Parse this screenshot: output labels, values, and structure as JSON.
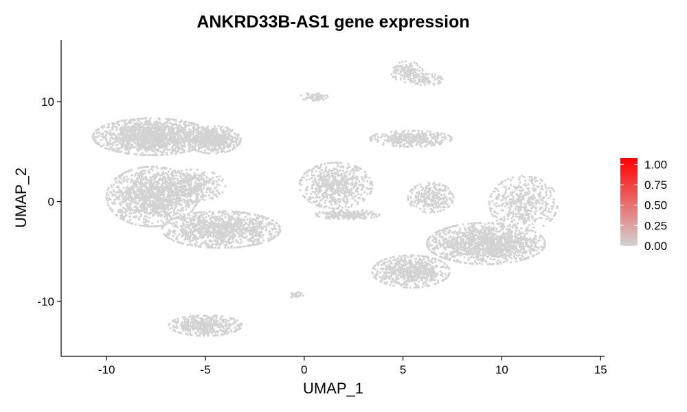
{
  "chart_data": {
    "type": "scatter",
    "title": "ANKRD33B-AS1 gene expression",
    "xlabel": "UMAP_1",
    "ylabel": "UMAP_2",
    "xlim": [
      -12.3,
      15.2
    ],
    "ylim": [
      -15.5,
      16.2
    ],
    "x_ticks": [
      -10,
      -5,
      0,
      5,
      10,
      15
    ],
    "y_ticks": [
      -10,
      0,
      10
    ],
    "grid": false,
    "point_color": "#D3D3D3",
    "clusters": [
      {
        "cx": -7.7,
        "cy": 6.5,
        "rx": 2.6,
        "ry": 1.6,
        "n": 1500
      },
      {
        "cx": -4.6,
        "cy": 6.2,
        "rx": 1.2,
        "ry": 1.2,
        "n": 500
      },
      {
        "cx": -7.7,
        "cy": 0.5,
        "rx": 2.0,
        "ry": 2.6,
        "n": 1200
      },
      {
        "cx": -4.2,
        "cy": -2.8,
        "rx": 2.6,
        "ry": 1.6,
        "n": 1100
      },
      {
        "cx": -5.6,
        "cy": 1.6,
        "rx": 1.4,
        "ry": 1.4,
        "n": 350
      },
      {
        "cx": 1.6,
        "cy": 1.6,
        "rx": 1.6,
        "ry": 2.0,
        "n": 600
      },
      {
        "cx": 2.2,
        "cy": -1.3,
        "rx": 1.4,
        "ry": 0.4,
        "n": 200
      },
      {
        "cx": 0.5,
        "cy": 10.5,
        "rx": 0.6,
        "ry": 0.4,
        "n": 60
      },
      {
        "cx": 5.2,
        "cy": 13.0,
        "rx": 0.7,
        "ry": 0.9,
        "n": 130
      },
      {
        "cx": 6.2,
        "cy": 12.2,
        "rx": 0.7,
        "ry": 0.5,
        "n": 90
      },
      {
        "cx": 5.4,
        "cy": 6.3,
        "rx": 1.8,
        "ry": 0.7,
        "n": 350
      },
      {
        "cx": 6.4,
        "cy": 0.4,
        "rx": 1.0,
        "ry": 1.3,
        "n": 250
      },
      {
        "cx": 11.1,
        "cy": -0.2,
        "rx": 1.5,
        "ry": 2.4,
        "n": 450
      },
      {
        "cx": 9.2,
        "cy": -4.2,
        "rx": 2.6,
        "ry": 1.8,
        "n": 1300
      },
      {
        "cx": 5.4,
        "cy": -7.0,
        "rx": 1.7,
        "ry": 1.4,
        "n": 650
      },
      {
        "cx": -5.0,
        "cy": -12.4,
        "rx": 1.6,
        "ry": 0.9,
        "n": 400
      },
      {
        "cx": -0.4,
        "cy": -9.4,
        "rx": 0.3,
        "ry": 0.3,
        "n": 25
      }
    ],
    "legend": {
      "placement": "right",
      "colors": [
        "#D3D3D3",
        "#FF0000"
      ],
      "range": [
        0,
        1.08
      ],
      "ticks": [
        "0.00",
        "0.25",
        "0.50",
        "0.75",
        "1.00"
      ]
    }
  }
}
